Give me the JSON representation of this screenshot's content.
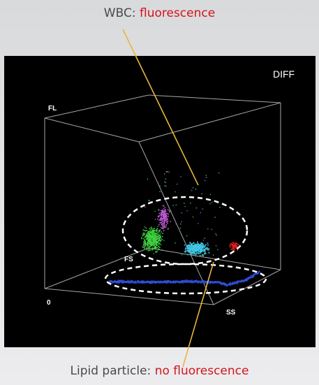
{
  "top_annotation": {
    "prefix": "WBC: ",
    "highlight": "fluorescence"
  },
  "bottom_annotation": {
    "prefix": "Lipid particle: ",
    "highlight": "no fluorescence"
  },
  "panel": {
    "title": "DIFF"
  },
  "axes": {
    "fl": "FL",
    "fs": "FS",
    "ss": "SS",
    "origin": "0"
  },
  "colors": {
    "panel_bg": "#000000",
    "accent_text": "#d4141b",
    "pointer_line": "#e8b53c",
    "cluster_green": "#3fd13f",
    "cluster_magenta": "#c05ad8",
    "cluster_cyan": "#3fc9e6",
    "cluster_red": "#e31d1d",
    "lipid_band": "#2f4fd6"
  }
}
